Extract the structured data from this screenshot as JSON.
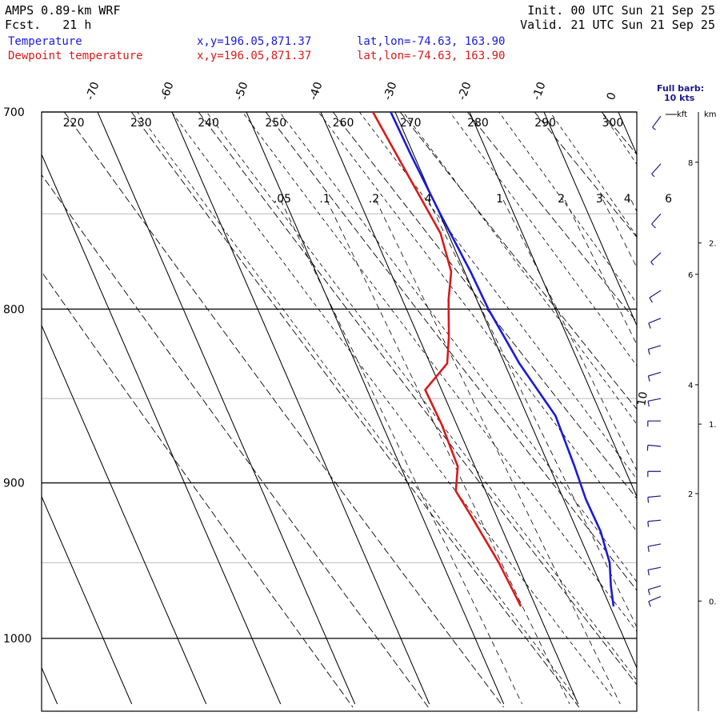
{
  "header": {
    "model": "AMPS 0.89-km WRF",
    "fcst_label": "Fcst.",
    "fcst_value": "21 h",
    "init": "Init. 00 UTC Sun 21 Sep 25",
    "valid": "Valid. 21 UTC Sun 21 Sep 25"
  },
  "legend": {
    "temperature": {
      "name": "Temperature",
      "xy": "x,y=196.05,871.37",
      "latlon": "lat,lon=-74.63, 163.90",
      "color": "#1a1ad8"
    },
    "dewpoint": {
      "name": "Dewpoint temperature",
      "xy": "x,y=196.05,871.37",
      "latlon": "lat,lon=-74.63, 163.90",
      "color": "#d81a1a"
    }
  },
  "barb_title": {
    "line1": "Full barb:",
    "line2": "10 kts"
  },
  "height_axis": {
    "kft_label": "kft",
    "km_label": "km",
    "kft_ticks": [
      {
        "v": 8,
        "label": "8"
      },
      {
        "v": 6,
        "label": "6"
      },
      {
        "v": 4,
        "label": "4"
      },
      {
        "v": 2,
        "label": "2"
      }
    ],
    "km_ticks": [
      {
        "v": 2,
        "label": "2."
      },
      {
        "v": 1,
        "label": "1."
      },
      {
        "v": 0,
        "label": "0."
      }
    ]
  },
  "chart_data": {
    "type": "skew-t",
    "pressure_axis": {
      "range": [
        700,
        1040
      ],
      "labels": [
        "700",
        "800",
        "900",
        "1000"
      ]
    },
    "temperature_labels": [
      "-70",
      "-60",
      "-50",
      "-40",
      "-30",
      "-20",
      "-10",
      "0"
    ],
    "isotherm_values": [
      -70,
      -60,
      -50,
      -40,
      -30,
      -20,
      -10,
      0
    ],
    "dry_adiabat_labels": [
      "220",
      "230",
      "240",
      "250",
      "260",
      "270",
      "280",
      "290",
      "300"
    ],
    "mixing_ratio_labels": [
      ".05",
      ".1",
      ".2",
      ".4",
      "1",
      "2",
      "3",
      "4",
      "6"
    ],
    "moist_adiabat_label": "10",
    "series": [
      {
        "name": "Temperature",
        "color": "#1a1ad8",
        "points": [
          {
            "p": 700,
            "t": -30.6
          },
          {
            "p": 720,
            "t": -30.4
          },
          {
            "p": 750,
            "t": -29.9
          },
          {
            "p": 780,
            "t": -29.2
          },
          {
            "p": 800,
            "t": -29.0
          },
          {
            "p": 830,
            "t": -28.0
          },
          {
            "p": 850,
            "t": -26.8
          },
          {
            "p": 860,
            "t": -26.2
          },
          {
            "p": 875,
            "t": -26.4
          },
          {
            "p": 890,
            "t": -26.6
          },
          {
            "p": 910,
            "t": -27.0
          },
          {
            "p": 930,
            "t": -26.9
          },
          {
            "p": 950,
            "t": -27.5
          },
          {
            "p": 965,
            "t": -28.7
          },
          {
            "p": 978,
            "t": -29.5
          }
        ]
      },
      {
        "name": "Dewpoint temperature",
        "color": "#d81a1a",
        "points": [
          {
            "p": 700,
            "t": -33.0
          },
          {
            "p": 730,
            "t": -32.0
          },
          {
            "p": 760,
            "t": -31.0
          },
          {
            "p": 780,
            "t": -31.8
          },
          {
            "p": 795,
            "t": -33.8
          },
          {
            "p": 815,
            "t": -35.9
          },
          {
            "p": 830,
            "t": -37.7
          },
          {
            "p": 845,
            "t": -42.2
          },
          {
            "p": 865,
            "t": -42.0
          },
          {
            "p": 890,
            "t": -42.3
          },
          {
            "p": 905,
            "t": -44.0
          },
          {
            "p": 920,
            "t": -43.4
          },
          {
            "p": 950,
            "t": -42.4
          },
          {
            "p": 978,
            "t": -42.0
          }
        ]
      }
    ],
    "wind_barbs": [
      {
        "p": 702,
        "dir": 220,
        "kt": 3
      },
      {
        "p": 725,
        "dir": 225,
        "kt": 4
      },
      {
        "p": 750,
        "dir": 225,
        "kt": 5
      },
      {
        "p": 770,
        "dir": 230,
        "kt": 4
      },
      {
        "p": 790,
        "dir": 240,
        "kt": 5
      },
      {
        "p": 805,
        "dir": 250,
        "kt": 5
      },
      {
        "p": 820,
        "dir": 255,
        "kt": 6
      },
      {
        "p": 835,
        "dir": 255,
        "kt": 6
      },
      {
        "p": 850,
        "dir": 260,
        "kt": 6
      },
      {
        "p": 863,
        "dir": 270,
        "kt": 5
      },
      {
        "p": 878,
        "dir": 275,
        "kt": 5
      },
      {
        "p": 893,
        "dir": 270,
        "kt": 5
      },
      {
        "p": 908,
        "dir": 265,
        "kt": 5
      },
      {
        "p": 923,
        "dir": 265,
        "kt": 5
      },
      {
        "p": 938,
        "dir": 260,
        "kt": 6
      },
      {
        "p": 953,
        "dir": 260,
        "kt": 7
      },
      {
        "p": 965,
        "dir": 255,
        "kt": 8
      },
      {
        "p": 972,
        "dir": 250,
        "kt": 8
      }
    ]
  }
}
